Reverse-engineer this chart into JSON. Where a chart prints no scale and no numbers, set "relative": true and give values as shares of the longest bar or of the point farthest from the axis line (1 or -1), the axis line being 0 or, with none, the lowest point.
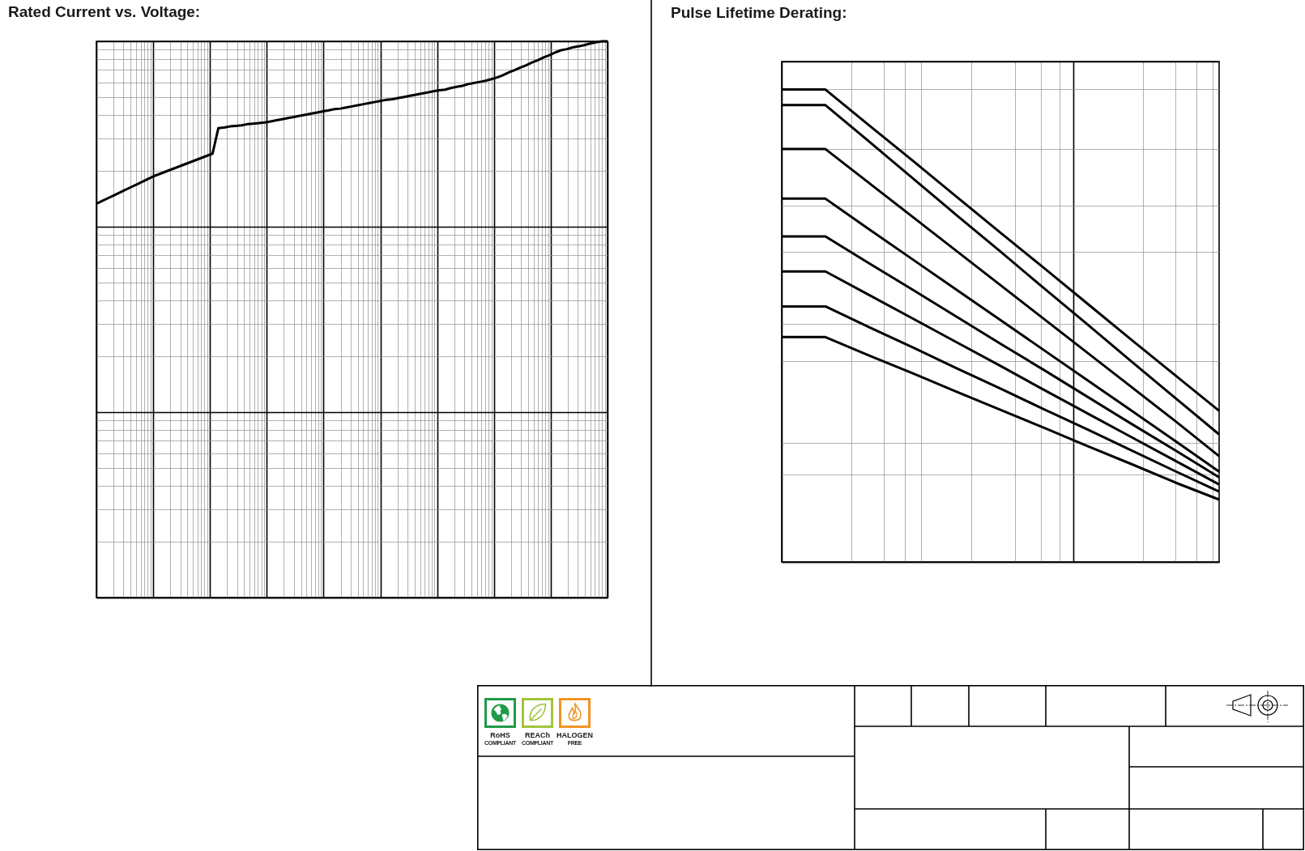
{
  "chart_data": [
    {
      "type": "line",
      "title": "Rated Current vs. Voltage:",
      "relative": true,
      "grid": true,
      "categories": [
        null,
        null,
        null,
        null,
        null,
        null,
        null,
        null,
        null,
        null,
        null,
        null,
        null,
        null,
        null,
        null,
        null,
        null,
        null,
        null,
        null,
        null,
        null,
        null,
        null,
        null,
        null,
        null,
        null,
        null,
        null,
        null,
        null,
        null,
        null,
        null,
        null,
        null,
        null,
        null,
        null,
        null,
        null,
        null,
        null,
        null,
        null,
        null,
        null,
        null,
        null,
        null,
        null,
        null,
        null,
        null,
        null,
        null,
        null,
        null,
        null,
        null,
        null,
        null,
        null,
        null,
        null,
        null,
        null,
        null,
        null,
        null,
        null,
        null,
        null,
        null,
        null,
        null,
        null,
        null,
        null,
        null,
        null,
        null,
        null,
        null,
        null,
        null,
        null
      ],
      "series": [
        {
          "color": "#000000",
          "values": [
            0.708,
            0.713,
            0.718,
            0.723,
            0.728,
            0.733,
            0.738,
            0.743,
            0.748,
            0.753,
            0.758,
            0.762,
            0.766,
            0.77,
            0.774,
            0.778,
            0.782,
            0.786,
            0.79,
            0.794,
            0.798,
            0.844,
            0.845,
            0.847,
            0.848,
            0.849,
            0.851,
            0.852,
            0.853,
            0.854,
            0.856,
            0.858,
            0.86,
            0.862,
            0.864,
            0.866,
            0.868,
            0.87,
            0.872,
            0.874,
            0.876,
            0.878,
            0.879,
            0.881,
            0.883,
            0.885,
            0.887,
            0.889,
            0.891,
            0.893,
            0.895,
            0.896,
            0.898,
            0.9,
            0.902,
            0.904,
            0.906,
            0.908,
            0.91,
            0.912,
            0.913,
            0.916,
            0.918,
            0.92,
            0.923,
            0.925,
            0.927,
            0.929,
            0.932,
            0.935,
            0.939,
            0.944,
            0.948,
            0.953,
            0.957,
            0.962,
            0.966,
            0.971,
            0.975,
            0.98,
            0.984,
            0.986,
            0.989,
            0.991,
            0.993,
            0.996,
            0.998,
            1,
            1
          ]
        }
      ]
    },
    {
      "type": "line",
      "title": "Pulse Lifetime Derating:",
      "relative": true,
      "grid": true,
      "categories": [
        null,
        null,
        null,
        null,
        null,
        null,
        null,
        null,
        null,
        null,
        null
      ],
      "series": [
        {
          "color": "#000000",
          "values": [
            1,
            1,
            0.924,
            0.849,
            0.773,
            0.697,
            0.622,
            0.546,
            0.47,
            0.395,
            0.32
          ]
        },
        {
          "color": "#000000",
          "values": [
            0.967,
            0.967,
            0.89,
            0.812,
            0.734,
            0.657,
            0.579,
            0.502,
            0.424,
            0.347,
            0.27
          ]
        },
        {
          "color": "#000000",
          "values": [
            0.874,
            0.874,
            0.802,
            0.73,
            0.658,
            0.586,
            0.514,
            0.442,
            0.37,
            0.298,
            0.224
          ]
        },
        {
          "color": "#000000",
          "values": [
            0.769,
            0.769,
            0.704,
            0.64,
            0.576,
            0.512,
            0.448,
            0.384,
            0.32,
            0.256,
            0.191
          ]
        },
        {
          "color": "#000000",
          "values": [
            0.689,
            0.689,
            0.632,
            0.576,
            0.519,
            0.462,
            0.406,
            0.349,
            0.292,
            0.236,
            0.179
          ]
        },
        {
          "color": "#000000",
          "values": [
            0.615,
            0.615,
            0.565,
            0.515,
            0.465,
            0.415,
            0.364,
            0.314,
            0.264,
            0.214,
            0.164
          ]
        },
        {
          "color": "#000000",
          "values": [
            0.541,
            0.541,
            0.497,
            0.454,
            0.41,
            0.367,
            0.323,
            0.28,
            0.236,
            0.192,
            0.149
          ]
        },
        {
          "color": "#000000",
          "values": [
            0.476,
            0.476,
            0.437,
            0.399,
            0.36,
            0.322,
            0.284,
            0.245,
            0.207,
            0.168,
            0.132
          ]
        }
      ]
    },
    {
      "type": "other",
      "annotations": [
        "RoHS",
        "COMPLIANT",
        "REACh",
        "COMPLIANT",
        "HALOGEN",
        "FREE"
      ]
    }
  ]
}
